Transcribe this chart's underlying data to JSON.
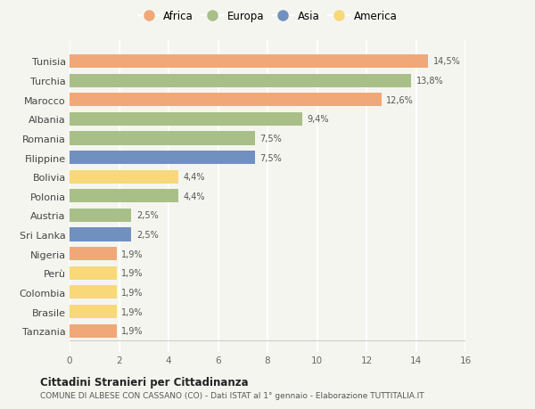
{
  "countries": [
    "Tunisia",
    "Turchia",
    "Marocco",
    "Albania",
    "Romania",
    "Filippine",
    "Bolivia",
    "Polonia",
    "Austria",
    "Sri Lanka",
    "Nigeria",
    "Perù",
    "Colombia",
    "Brasile",
    "Tanzania"
  ],
  "values": [
    14.5,
    13.8,
    12.6,
    9.4,
    7.5,
    7.5,
    4.4,
    4.4,
    2.5,
    2.5,
    1.9,
    1.9,
    1.9,
    1.9,
    1.9
  ],
  "labels": [
    "14,5%",
    "13,8%",
    "12,6%",
    "9,4%",
    "7,5%",
    "7,5%",
    "4,4%",
    "4,4%",
    "2,5%",
    "2,5%",
    "1,9%",
    "1,9%",
    "1,9%",
    "1,9%",
    "1,9%"
  ],
  "continents": [
    "Africa",
    "Europa",
    "Africa",
    "Europa",
    "Europa",
    "Asia",
    "America",
    "Europa",
    "Europa",
    "Asia",
    "Africa",
    "America",
    "America",
    "America",
    "Africa"
  ],
  "colors": {
    "Africa": "#F0A878",
    "Europa": "#A8BF88",
    "Asia": "#7090C0",
    "America": "#F8D878"
  },
  "legend_order": [
    "Africa",
    "Europa",
    "Asia",
    "America"
  ],
  "xlim": [
    0,
    16
  ],
  "xticks": [
    0,
    2,
    4,
    6,
    8,
    10,
    12,
    14,
    16
  ],
  "title": "Cittadini Stranieri per Cittadinanza",
  "subtitle": "COMUNE DI ALBESE CON CASSANO (CO) - Dati ISTAT al 1° gennaio - Elaborazione TUTTITALIA.IT",
  "background_color": "#f5f5f0",
  "grid_color": "#ffffff",
  "bar_height": 0.7
}
